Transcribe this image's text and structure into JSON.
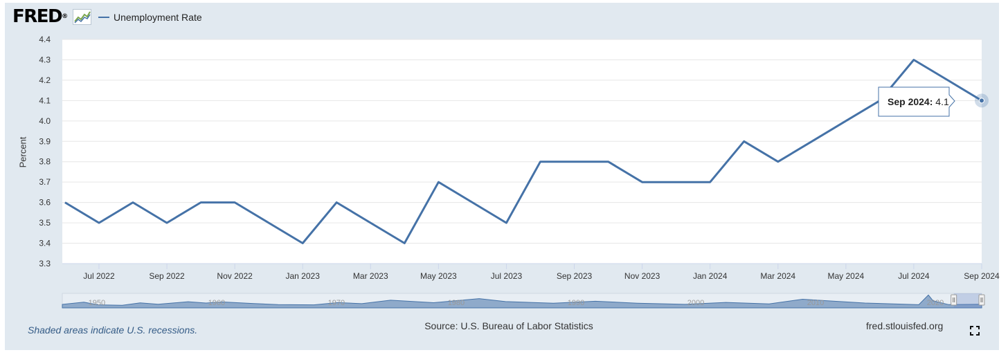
{
  "header": {
    "logo_text": "FRED",
    "logo_mark": "®",
    "legend_label": "Unemployment Rate"
  },
  "footer": {
    "recession_note": "Shaded areas indicate U.S. recessions.",
    "source": "Source: U.S. Bureau of Labor Statistics",
    "site": "fred.stlouisfed.org"
  },
  "tooltip": {
    "date": "Sep 2024",
    "value": "4.1"
  },
  "colors": {
    "series": "#4572a7",
    "frame": "#e1e9f0",
    "plot_bg": "#ffffff",
    "grid": "#e6e6e6"
  },
  "chart_data": {
    "type": "line",
    "title": "",
    "xlabel": "",
    "ylabel": "Percent",
    "ylim": [
      3.3,
      4.4
    ],
    "y_ticks": [
      "3.3",
      "3.4",
      "3.5",
      "3.6",
      "3.7",
      "3.8",
      "3.9",
      "4.0",
      "4.1",
      "4.2",
      "4.3",
      "4.4"
    ],
    "x_ticks": [
      "Jul 2022",
      "Sep 2022",
      "Nov 2022",
      "Jan 2023",
      "Mar 2023",
      "May 2023",
      "Jul 2023",
      "Sep 2023",
      "Nov 2023",
      "Jan 2024",
      "Mar 2024",
      "May 2024",
      "Jul 2024",
      "Sep 2024"
    ],
    "grid": true,
    "series": [
      {
        "name": "Unemployment Rate",
        "x": [
          "Jun 2022",
          "Jul 2022",
          "Aug 2022",
          "Sep 2022",
          "Oct 2022",
          "Nov 2022",
          "Dec 2022",
          "Jan 2023",
          "Feb 2023",
          "Mar 2023",
          "Apr 2023",
          "May 2023",
          "Jun 2023",
          "Jul 2023",
          "Aug 2023",
          "Sep 2023",
          "Oct 2023",
          "Nov 2023",
          "Dec 2023",
          "Jan 2024",
          "Feb 2024",
          "Mar 2024",
          "Apr 2024",
          "May 2024",
          "Jun 2024",
          "Jul 2024",
          "Aug 2024",
          "Sep 2024"
        ],
        "values": [
          3.6,
          3.5,
          3.6,
          3.5,
          3.6,
          3.6,
          3.5,
          3.4,
          3.6,
          3.5,
          3.4,
          3.7,
          3.6,
          3.5,
          3.8,
          3.8,
          3.8,
          3.7,
          3.7,
          3.7,
          3.9,
          3.8,
          3.9,
          4.0,
          4.1,
          4.3,
          4.2,
          4.1
        ]
      }
    ],
    "navigator": {
      "labels": [
        "1950",
        "1960",
        "1970",
        "1980",
        "1990",
        "2000",
        "2010",
        "2020"
      ]
    }
  }
}
